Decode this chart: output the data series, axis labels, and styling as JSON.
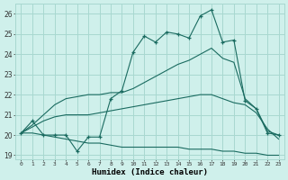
{
  "title": "",
  "xlabel": "Humidex (Indice chaleur)",
  "ylabel": "",
  "bg_color": "#cff0eb",
  "grid_color": "#a8d8d0",
  "line_color": "#1a6b60",
  "xlim": [
    -0.5,
    23.5
  ],
  "ylim": [
    18.8,
    26.5
  ],
  "xticks": [
    0,
    1,
    2,
    3,
    4,
    5,
    6,
    7,
    8,
    9,
    10,
    11,
    12,
    13,
    14,
    15,
    16,
    17,
    18,
    19,
    20,
    21,
    22,
    23
  ],
  "yticks": [
    19,
    20,
    21,
    22,
    23,
    24,
    25,
    26
  ],
  "main_line": [
    20.1,
    20.7,
    20.0,
    20.0,
    20.0,
    19.2,
    19.9,
    19.9,
    21.8,
    22.2,
    24.1,
    24.9,
    24.6,
    25.1,
    25.0,
    24.8,
    25.9,
    26.2,
    24.6,
    24.7,
    21.7,
    21.3,
    20.1,
    20.0
  ],
  "upper_line": [
    20.1,
    20.5,
    21.0,
    21.5,
    21.8,
    21.9,
    22.0,
    22.0,
    22.1,
    22.1,
    22.3,
    22.6,
    22.9,
    23.2,
    23.5,
    23.7,
    24.0,
    24.3,
    23.8,
    23.6,
    21.8,
    21.3,
    20.2,
    20.0
  ],
  "mid_line": [
    20.1,
    20.4,
    20.7,
    20.9,
    21.0,
    21.0,
    21.0,
    21.1,
    21.2,
    21.3,
    21.4,
    21.5,
    21.6,
    21.7,
    21.8,
    21.9,
    22.0,
    22.0,
    21.8,
    21.6,
    21.5,
    21.1,
    20.3,
    19.8
  ],
  "lower_line": [
    20.1,
    20.1,
    20.0,
    19.9,
    19.8,
    19.7,
    19.6,
    19.6,
    19.5,
    19.4,
    19.4,
    19.4,
    19.4,
    19.4,
    19.4,
    19.3,
    19.3,
    19.3,
    19.2,
    19.2,
    19.1,
    19.1,
    19.0,
    19.0
  ]
}
